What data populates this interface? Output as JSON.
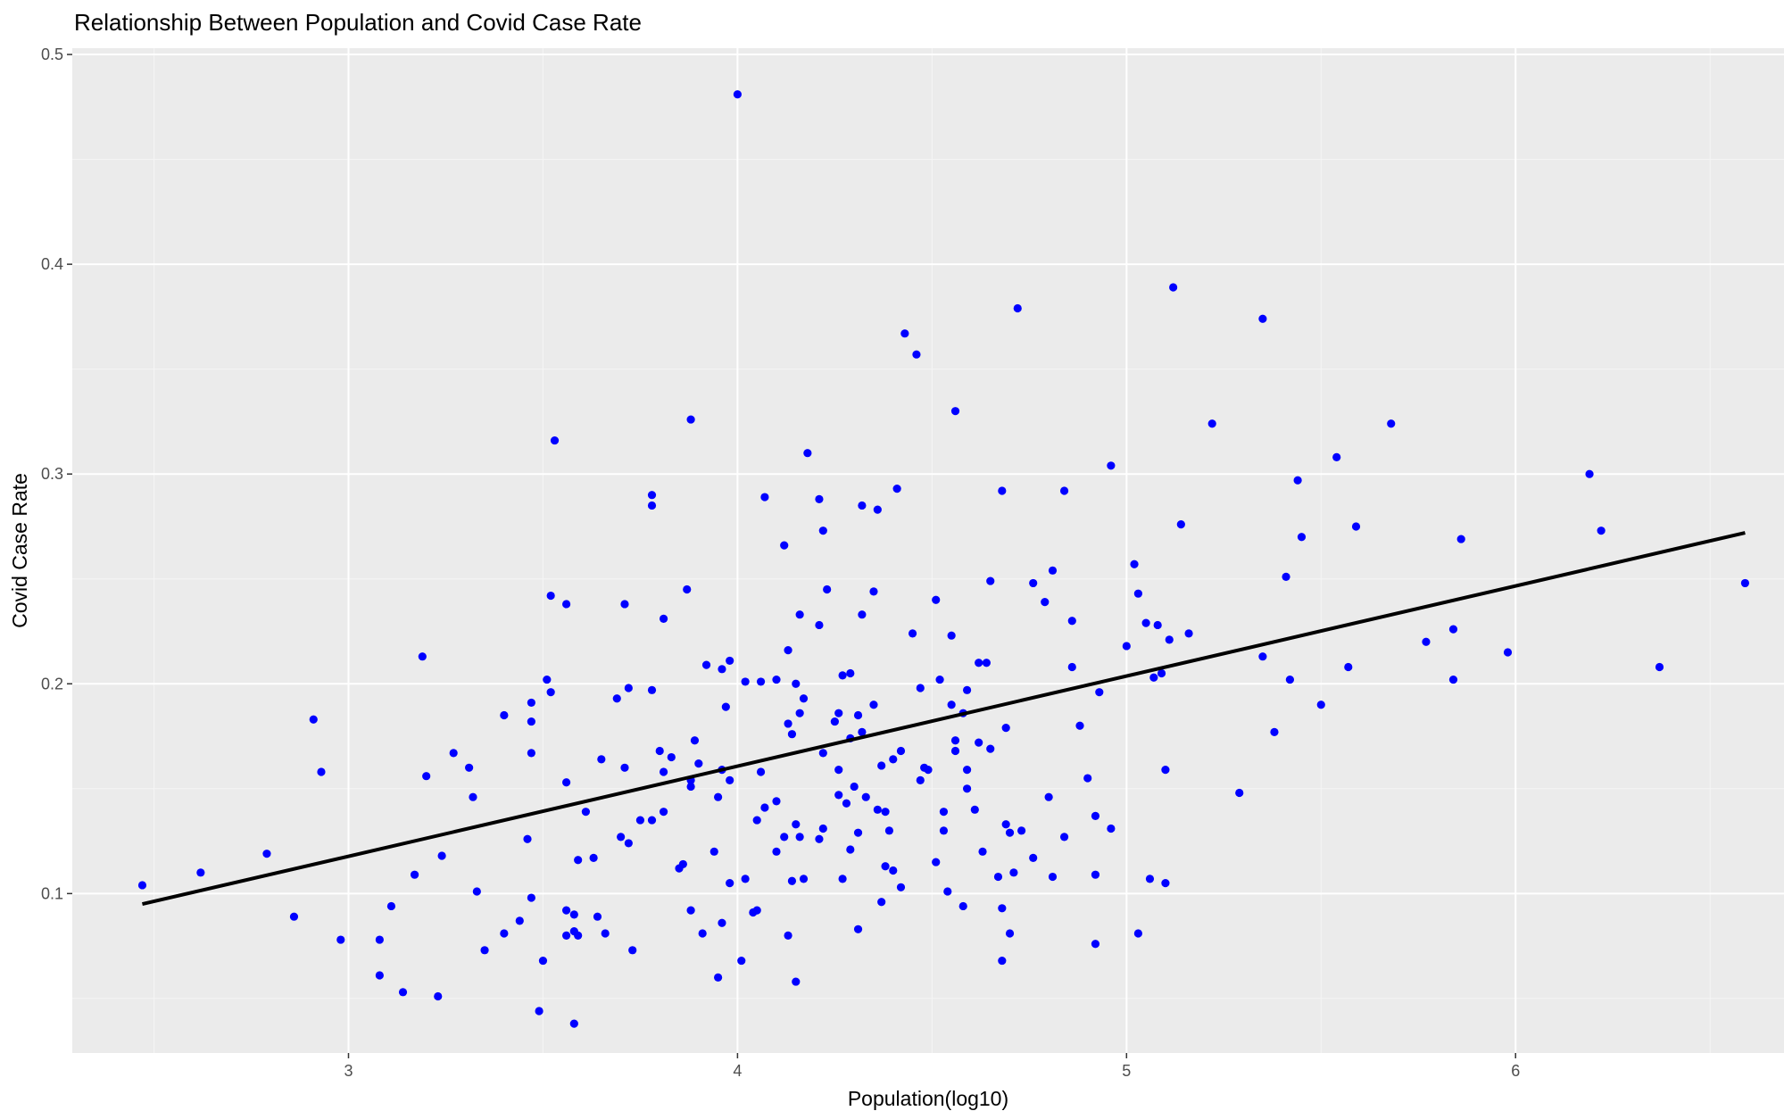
{
  "chart_data": {
    "type": "scatter",
    "title": "Relationship Between Population and Covid Case Rate",
    "xlabel": "Population(log10)",
    "ylabel": "Covid Case Rate",
    "xlim": [
      2.29,
      6.69
    ],
    "ylim": [
      0.024,
      0.503
    ],
    "x_ticks": [
      3,
      4,
      5,
      6
    ],
    "x_tick_labels": [
      "3",
      "4",
      "5",
      "6"
    ],
    "y_ticks": [
      0.1,
      0.2,
      0.3,
      0.4,
      0.5
    ],
    "y_tick_labels": [
      "0.1",
      "0.2",
      "0.3",
      "0.4",
      "0.5"
    ],
    "grid": true,
    "legend": "none",
    "colors": {
      "panel_background": "#ebebeb",
      "grid_major": "#ffffff",
      "grid_minor": "#f5f5f5",
      "points": "#0000ff",
      "fit_line": "#000000"
    },
    "trend_line": {
      "x": [
        2.47,
        6.59
      ],
      "y": [
        0.095,
        0.272
      ]
    },
    "series": [
      {
        "points": [
          [
            2.47,
            0.104
          ],
          [
            2.62,
            0.11
          ],
          [
            2.79,
            0.119
          ],
          [
            2.86,
            0.089
          ],
          [
            2.91,
            0.183
          ],
          [
            2.93,
            0.158
          ],
          [
            2.98,
            0.078
          ],
          [
            3.08,
            0.078
          ],
          [
            3.08,
            0.061
          ],
          [
            3.11,
            0.094
          ],
          [
            3.14,
            0.053
          ],
          [
            3.17,
            0.109
          ],
          [
            3.19,
            0.213
          ],
          [
            3.2,
            0.156
          ],
          [
            3.23,
            0.051
          ],
          [
            3.24,
            0.118
          ],
          [
            3.27,
            0.167
          ],
          [
            3.31,
            0.16
          ],
          [
            3.32,
            0.146
          ],
          [
            3.33,
            0.101
          ],
          [
            3.35,
            0.073
          ],
          [
            3.4,
            0.081
          ],
          [
            3.4,
            0.185
          ],
          [
            3.44,
            0.087
          ],
          [
            3.46,
            0.126
          ],
          [
            3.47,
            0.191
          ],
          [
            3.47,
            0.182
          ],
          [
            3.47,
            0.167
          ],
          [
            3.47,
            0.098
          ],
          [
            3.49,
            0.044
          ],
          [
            3.5,
            0.068
          ],
          [
            3.51,
            0.202
          ],
          [
            3.52,
            0.242
          ],
          [
            3.52,
            0.196
          ],
          [
            3.53,
            0.316
          ],
          [
            3.56,
            0.238
          ],
          [
            3.56,
            0.153
          ],
          [
            3.56,
            0.092
          ],
          [
            3.56,
            0.08
          ],
          [
            3.58,
            0.038
          ],
          [
            3.58,
            0.09
          ],
          [
            3.58,
            0.082
          ],
          [
            3.59,
            0.08
          ],
          [
            3.59,
            0.116
          ],
          [
            3.61,
            0.139
          ],
          [
            3.63,
            0.117
          ],
          [
            3.64,
            0.089
          ],
          [
            3.65,
            0.164
          ],
          [
            3.66,
            0.081
          ],
          [
            3.69,
            0.193
          ],
          [
            3.7,
            0.127
          ],
          [
            3.71,
            0.16
          ],
          [
            3.71,
            0.238
          ],
          [
            3.72,
            0.124
          ],
          [
            3.72,
            0.198
          ],
          [
            3.73,
            0.073
          ],
          [
            3.75,
            0.135
          ],
          [
            3.78,
            0.29
          ],
          [
            3.78,
            0.285
          ],
          [
            3.78,
            0.197
          ],
          [
            3.78,
            0.135
          ],
          [
            3.8,
            0.168
          ],
          [
            3.81,
            0.231
          ],
          [
            3.81,
            0.158
          ],
          [
            3.81,
            0.139
          ],
          [
            3.83,
            0.165
          ],
          [
            3.85,
            0.112
          ],
          [
            3.86,
            0.114
          ],
          [
            3.87,
            0.245
          ],
          [
            3.88,
            0.154
          ],
          [
            3.88,
            0.151
          ],
          [
            3.88,
            0.092
          ],
          [
            3.88,
            0.326
          ],
          [
            3.89,
            0.173
          ],
          [
            3.9,
            0.162
          ],
          [
            3.91,
            0.081
          ],
          [
            3.92,
            0.209
          ],
          [
            3.94,
            0.12
          ],
          [
            3.95,
            0.06
          ],
          [
            3.95,
            0.146
          ],
          [
            3.96,
            0.207
          ],
          [
            3.96,
            0.159
          ],
          [
            3.96,
            0.086
          ],
          [
            3.97,
            0.189
          ],
          [
            3.98,
            0.211
          ],
          [
            3.98,
            0.154
          ],
          [
            3.98,
            0.105
          ],
          [
            4.0,
            0.481
          ],
          [
            4.01,
            0.068
          ],
          [
            4.02,
            0.201
          ],
          [
            4.02,
            0.107
          ],
          [
            4.04,
            0.091
          ],
          [
            4.05,
            0.092
          ],
          [
            4.05,
            0.135
          ],
          [
            4.06,
            0.201
          ],
          [
            4.06,
            0.158
          ],
          [
            4.07,
            0.289
          ],
          [
            4.07,
            0.141
          ],
          [
            4.1,
            0.144
          ],
          [
            4.1,
            0.202
          ],
          [
            4.1,
            0.12
          ],
          [
            4.12,
            0.266
          ],
          [
            4.12,
            0.127
          ],
          [
            4.13,
            0.216
          ],
          [
            4.13,
            0.181
          ],
          [
            4.13,
            0.08
          ],
          [
            4.14,
            0.176
          ],
          [
            4.14,
            0.106
          ],
          [
            4.15,
            0.2
          ],
          [
            4.15,
            0.058
          ],
          [
            4.15,
            0.133
          ],
          [
            4.16,
            0.233
          ],
          [
            4.16,
            0.186
          ],
          [
            4.16,
            0.127
          ],
          [
            4.17,
            0.193
          ],
          [
            4.17,
            0.107
          ],
          [
            4.18,
            0.31
          ],
          [
            4.21,
            0.288
          ],
          [
            4.21,
            0.228
          ],
          [
            4.21,
            0.126
          ],
          [
            4.22,
            0.273
          ],
          [
            4.22,
            0.131
          ],
          [
            4.22,
            0.167
          ],
          [
            4.23,
            0.245
          ],
          [
            4.25,
            0.182
          ],
          [
            4.26,
            0.186
          ],
          [
            4.26,
            0.159
          ],
          [
            4.26,
            0.147
          ],
          [
            4.27,
            0.204
          ],
          [
            4.27,
            0.107
          ],
          [
            4.28,
            0.143
          ],
          [
            4.29,
            0.121
          ],
          [
            4.29,
            0.174
          ],
          [
            4.29,
            0.205
          ],
          [
            4.3,
            0.151
          ],
          [
            4.31,
            0.129
          ],
          [
            4.31,
            0.185
          ],
          [
            4.31,
            0.083
          ],
          [
            4.32,
            0.177
          ],
          [
            4.32,
            0.233
          ],
          [
            4.32,
            0.285
          ],
          [
            4.33,
            0.146
          ],
          [
            4.35,
            0.19
          ],
          [
            4.35,
            0.244
          ],
          [
            4.36,
            0.283
          ],
          [
            4.36,
            0.14
          ],
          [
            4.37,
            0.096
          ],
          [
            4.37,
            0.161
          ],
          [
            4.38,
            0.113
          ],
          [
            4.38,
            0.139
          ],
          [
            4.39,
            0.13
          ],
          [
            4.4,
            0.164
          ],
          [
            4.4,
            0.111
          ],
          [
            4.41,
            0.293
          ],
          [
            4.42,
            0.168
          ],
          [
            4.42,
            0.103
          ],
          [
            4.43,
            0.367
          ],
          [
            4.45,
            0.224
          ],
          [
            4.46,
            0.357
          ],
          [
            4.47,
            0.198
          ],
          [
            4.47,
            0.154
          ],
          [
            4.48,
            0.16
          ],
          [
            4.49,
            0.159
          ],
          [
            4.51,
            0.24
          ],
          [
            4.51,
            0.115
          ],
          [
            4.52,
            0.202
          ],
          [
            4.53,
            0.13
          ],
          [
            4.53,
            0.139
          ],
          [
            4.54,
            0.101
          ],
          [
            4.55,
            0.223
          ],
          [
            4.55,
            0.19
          ],
          [
            4.56,
            0.173
          ],
          [
            4.56,
            0.168
          ],
          [
            4.56,
            0.33
          ],
          [
            4.58,
            0.186
          ],
          [
            4.58,
            0.094
          ],
          [
            4.59,
            0.197
          ],
          [
            4.59,
            0.15
          ],
          [
            4.59,
            0.159
          ],
          [
            4.61,
            0.14
          ],
          [
            4.62,
            0.21
          ],
          [
            4.62,
            0.172
          ],
          [
            4.63,
            0.12
          ],
          [
            4.64,
            0.21
          ],
          [
            4.65,
            0.249
          ],
          [
            4.65,
            0.169
          ],
          [
            4.67,
            0.108
          ],
          [
            4.68,
            0.068
          ],
          [
            4.68,
            0.093
          ],
          [
            4.68,
            0.292
          ],
          [
            4.69,
            0.133
          ],
          [
            4.69,
            0.179
          ],
          [
            4.7,
            0.129
          ],
          [
            4.7,
            0.081
          ],
          [
            4.71,
            0.11
          ],
          [
            4.72,
            0.379
          ],
          [
            4.73,
            0.13
          ],
          [
            4.76,
            0.117
          ],
          [
            4.76,
            0.248
          ],
          [
            4.79,
            0.239
          ],
          [
            4.8,
            0.146
          ],
          [
            4.81,
            0.254
          ],
          [
            4.81,
            0.108
          ],
          [
            4.84,
            0.292
          ],
          [
            4.84,
            0.127
          ],
          [
            4.86,
            0.23
          ],
          [
            4.86,
            0.208
          ],
          [
            4.88,
            0.18
          ],
          [
            4.9,
            0.155
          ],
          [
            4.92,
            0.076
          ],
          [
            4.92,
            0.137
          ],
          [
            4.92,
            0.109
          ],
          [
            4.93,
            0.196
          ],
          [
            4.96,
            0.304
          ],
          [
            4.96,
            0.131
          ],
          [
            5.0,
            0.218
          ],
          [
            5.02,
            0.257
          ],
          [
            5.03,
            0.081
          ],
          [
            5.03,
            0.243
          ],
          [
            5.05,
            0.229
          ],
          [
            5.06,
            0.107
          ],
          [
            5.07,
            0.203
          ],
          [
            5.08,
            0.228
          ],
          [
            5.09,
            0.205
          ],
          [
            5.1,
            0.105
          ],
          [
            5.1,
            0.159
          ],
          [
            5.11,
            0.221
          ],
          [
            5.12,
            0.389
          ],
          [
            5.14,
            0.276
          ],
          [
            5.16,
            0.224
          ],
          [
            5.22,
            0.324
          ],
          [
            5.29,
            0.148
          ],
          [
            5.35,
            0.374
          ],
          [
            5.35,
            0.213
          ],
          [
            5.38,
            0.177
          ],
          [
            5.41,
            0.251
          ],
          [
            5.42,
            0.202
          ],
          [
            5.44,
            0.297
          ],
          [
            5.45,
            0.27
          ],
          [
            5.5,
            0.19
          ],
          [
            5.54,
            0.308
          ],
          [
            5.57,
            0.208
          ],
          [
            5.59,
            0.275
          ],
          [
            5.68,
            0.324
          ],
          [
            5.77,
            0.22
          ],
          [
            5.84,
            0.226
          ],
          [
            5.84,
            0.202
          ],
          [
            5.86,
            0.269
          ],
          [
            5.98,
            0.215
          ],
          [
            6.19,
            0.3
          ],
          [
            6.22,
            0.273
          ],
          [
            6.37,
            0.208
          ],
          [
            6.59,
            0.248
          ]
        ]
      }
    ]
  }
}
